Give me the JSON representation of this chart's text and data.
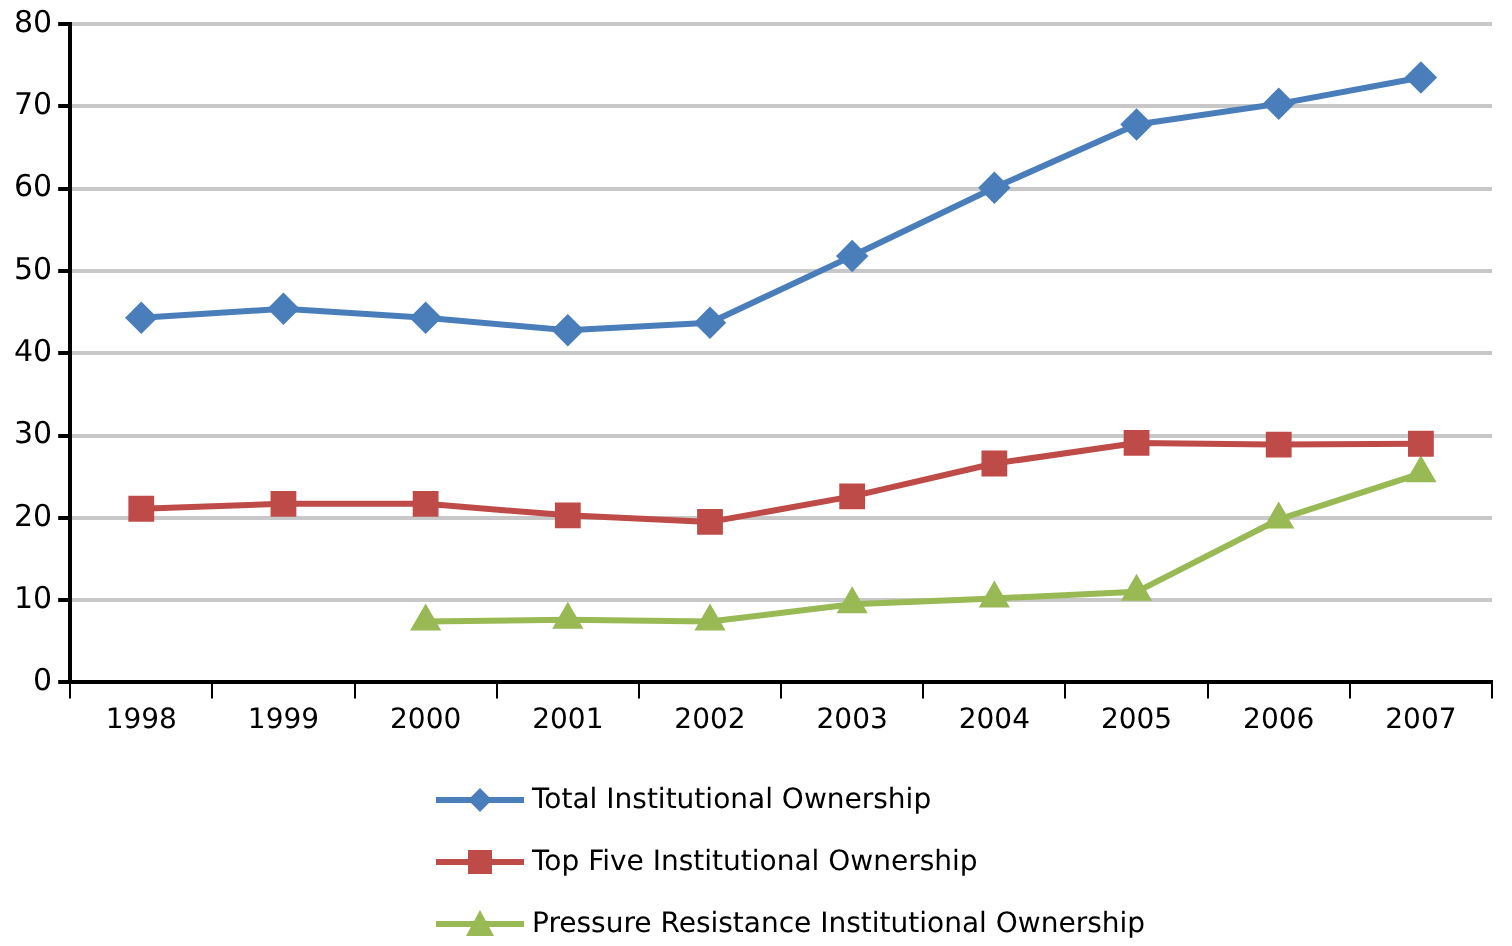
{
  "chart_data": {
    "type": "line",
    "categories": [
      "1998",
      "1999",
      "2000",
      "2001",
      "2002",
      "2003",
      "2004",
      "2005",
      "2006",
      "2007"
    ],
    "ylim": [
      0,
      80
    ],
    "yticks": [
      0,
      10,
      20,
      30,
      40,
      50,
      60,
      70,
      80
    ],
    "grid": "y",
    "legend": "bottom",
    "line_style": "solid",
    "series": [
      {
        "name": "Total Institutional Ownership",
        "color": "#4a7ebb",
        "marker": "diamond",
        "values": [
          44.3,
          45.4,
          44.3,
          42.8,
          43.7,
          51.8,
          60.1,
          67.8,
          70.3,
          73.5
        ]
      },
      {
        "name": "Top Five Institutional Ownership",
        "color": "#be4b48",
        "marker": "square",
        "values": [
          21.1,
          21.7,
          21.7,
          20.3,
          19.5,
          22.6,
          26.6,
          29.1,
          28.9,
          29.0
        ]
      },
      {
        "name": "Pressure Resistance Institutional Ownership",
        "color": "#98b954",
        "marker": "triangle",
        "values": [
          null,
          null,
          7.4,
          7.6,
          7.4,
          9.5,
          10.2,
          11.0,
          19.8,
          25.4
        ]
      }
    ]
  }
}
